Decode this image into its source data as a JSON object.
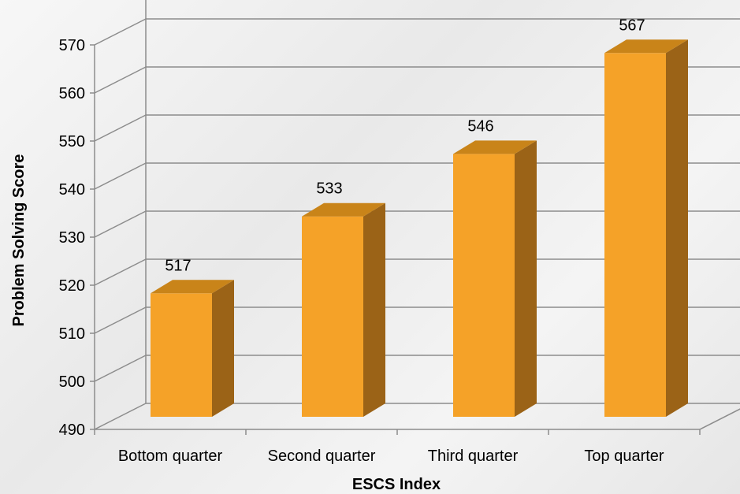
{
  "chart_data": {
    "type": "bar",
    "style": "3d-column",
    "categories": [
      "Bottom quarter",
      "Second quarter",
      "Third quarter",
      "Top quarter"
    ],
    "values": [
      517,
      533,
      546,
      567
    ],
    "data_labels": [
      "517",
      "533",
      "546",
      "567"
    ],
    "title": "",
    "xlabel": "ESCS Index",
    "ylabel": "Problem Solving Score",
    "ylim": [
      490,
      570
    ],
    "yticks": [
      "490",
      "500",
      "510",
      "520",
      "530",
      "540",
      "550",
      "560",
      "570"
    ],
    "grid": true,
    "legend": "none",
    "colors": {
      "bar_front": "#f5a228",
      "bar_top": "#c98419",
      "bar_side": "#9b6317",
      "grid": "#8c8c8c"
    }
  }
}
